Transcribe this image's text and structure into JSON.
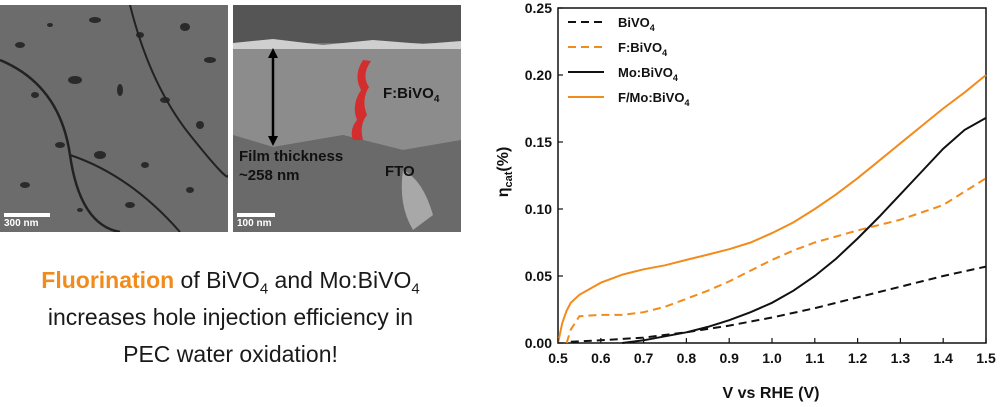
{
  "figure": {
    "sem_left": {
      "scale_label": "300 nm"
    },
    "sem_right": {
      "scale_label": "100 nm",
      "film_label": "F:BiVO",
      "film_sub": "4",
      "thickness_line1": "Film thickness",
      "thickness_line2": "~258 nm",
      "substrate_label": "FTO"
    },
    "caption": {
      "highlight": "Fluorination",
      "text_a": " of BiVO",
      "sub_a": "4",
      "text_b": " and Mo:BiVO",
      "sub_b": "4",
      "line2": "increases hole injection efficiency in",
      "line3": "PEC water oxidation!"
    },
    "colors": {
      "orange": "#f18c1c",
      "black": "#111111",
      "sem_gray": "#707070",
      "film_red": "#d42d2d"
    }
  },
  "chart_data": {
    "type": "line",
    "xlabel": "V vs RHE (V)",
    "ylabel": "η",
    "ylabel_sub": "cat",
    "ylabel_suffix": "(%)",
    "xlim": [
      0.5,
      1.5
    ],
    "ylim": [
      0,
      0.25
    ],
    "xticks": [
      "0.5",
      "0.6",
      "0.7",
      "0.8",
      "0.9",
      "1.0",
      "1.1",
      "1.2",
      "1.3",
      "1.4",
      "1.5"
    ],
    "yticks": [
      "0.00",
      "0.05",
      "0.10",
      "0.15",
      "0.20",
      "0.25"
    ],
    "legend_position": "top-left",
    "series": [
      {
        "name": "BiVO",
        "name_sub": "4",
        "color": "#111111",
        "dashed": true,
        "x": [
          0.53,
          0.6,
          0.7,
          0.8,
          0.9,
          1.0,
          1.1,
          1.2,
          1.3,
          1.4,
          1.5
        ],
        "y": [
          0.001,
          0.002,
          0.004,
          0.008,
          0.013,
          0.019,
          0.026,
          0.034,
          0.042,
          0.05,
          0.057
        ]
      },
      {
        "name": "F:BiVO",
        "name_sub": "4",
        "color": "#f18c1c",
        "dashed": true,
        "x": [
          0.52,
          0.53,
          0.55,
          0.6,
          0.65,
          0.7,
          0.75,
          0.8,
          0.85,
          0.9,
          0.95,
          1.0,
          1.05,
          1.1,
          1.2,
          1.3,
          1.4,
          1.5
        ],
        "y": [
          0.0,
          0.01,
          0.02,
          0.021,
          0.021,
          0.023,
          0.027,
          0.033,
          0.039,
          0.046,
          0.054,
          0.062,
          0.069,
          0.075,
          0.084,
          0.092,
          0.103,
          0.123
        ]
      },
      {
        "name": "Mo:BiVO",
        "name_sub": "4",
        "color": "#111111",
        "dashed": false,
        "x": [
          0.65,
          0.7,
          0.75,
          0.8,
          0.85,
          0.9,
          0.95,
          1.0,
          1.05,
          1.1,
          1.15,
          1.2,
          1.25,
          1.3,
          1.35,
          1.4,
          1.45,
          1.5
        ],
        "y": [
          0.0,
          0.002,
          0.005,
          0.008,
          0.012,
          0.017,
          0.023,
          0.03,
          0.039,
          0.05,
          0.063,
          0.078,
          0.094,
          0.111,
          0.128,
          0.145,
          0.159,
          0.168
        ]
      },
      {
        "name": "F/Mo:BiVO",
        "name_sub": "4",
        "color": "#f18c1c",
        "dashed": false,
        "x": [
          0.5,
          0.51,
          0.52,
          0.53,
          0.55,
          0.6,
          0.65,
          0.7,
          0.75,
          0.8,
          0.85,
          0.9,
          0.95,
          1.0,
          1.05,
          1.1,
          1.15,
          1.2,
          1.25,
          1.3,
          1.35,
          1.4,
          1.45,
          1.5
        ],
        "y": [
          0.0,
          0.015,
          0.024,
          0.03,
          0.036,
          0.045,
          0.051,
          0.055,
          0.058,
          0.062,
          0.066,
          0.07,
          0.075,
          0.082,
          0.09,
          0.1,
          0.111,
          0.123,
          0.136,
          0.149,
          0.162,
          0.175,
          0.187,
          0.2
        ]
      }
    ]
  }
}
